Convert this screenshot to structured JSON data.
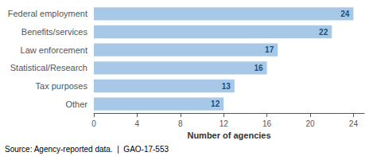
{
  "chart_data": {
    "type": "bar",
    "orientation": "horizontal",
    "categories": [
      "Federal employment",
      "Benefits/services",
      "Law enforcement",
      "Statistical/Research",
      "Tax purposes",
      "Other"
    ],
    "values": [
      24,
      22,
      17,
      16,
      13,
      12
    ],
    "color": "#a8c8e8",
    "xlabel": "Number of agencies",
    "xlim": [
      0,
      25
    ],
    "xticks": [
      0,
      4,
      8,
      12,
      16,
      20,
      24
    ],
    "data_labels": true,
    "grid": false,
    "annotation": "Source: Agency-reported data.  |  GAO-17-553"
  }
}
